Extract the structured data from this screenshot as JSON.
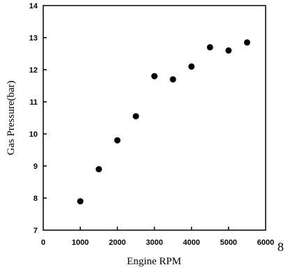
{
  "chart_data": {
    "type": "scatter",
    "title": "",
    "xlabel": "Engine RPM",
    "ylabel": "Gas Pressure(bar)",
    "xlim": [
      0,
      6000
    ],
    "ylim": [
      7,
      14
    ],
    "x_ticks": [
      0,
      1000,
      2000,
      3000,
      4000,
      5000,
      6000
    ],
    "y_ticks": [
      7,
      8,
      9,
      10,
      11,
      12,
      13,
      14
    ],
    "grid": false,
    "x": [
      1000,
      1500,
      2000,
      2500,
      3000,
      3500,
      4000,
      4500,
      5000,
      5500
    ],
    "y": [
      7.9,
      8.9,
      9.8,
      10.55,
      11.8,
      11.7,
      12.1,
      12.7,
      12.6,
      12.85
    ]
  },
  "side_text": "8"
}
